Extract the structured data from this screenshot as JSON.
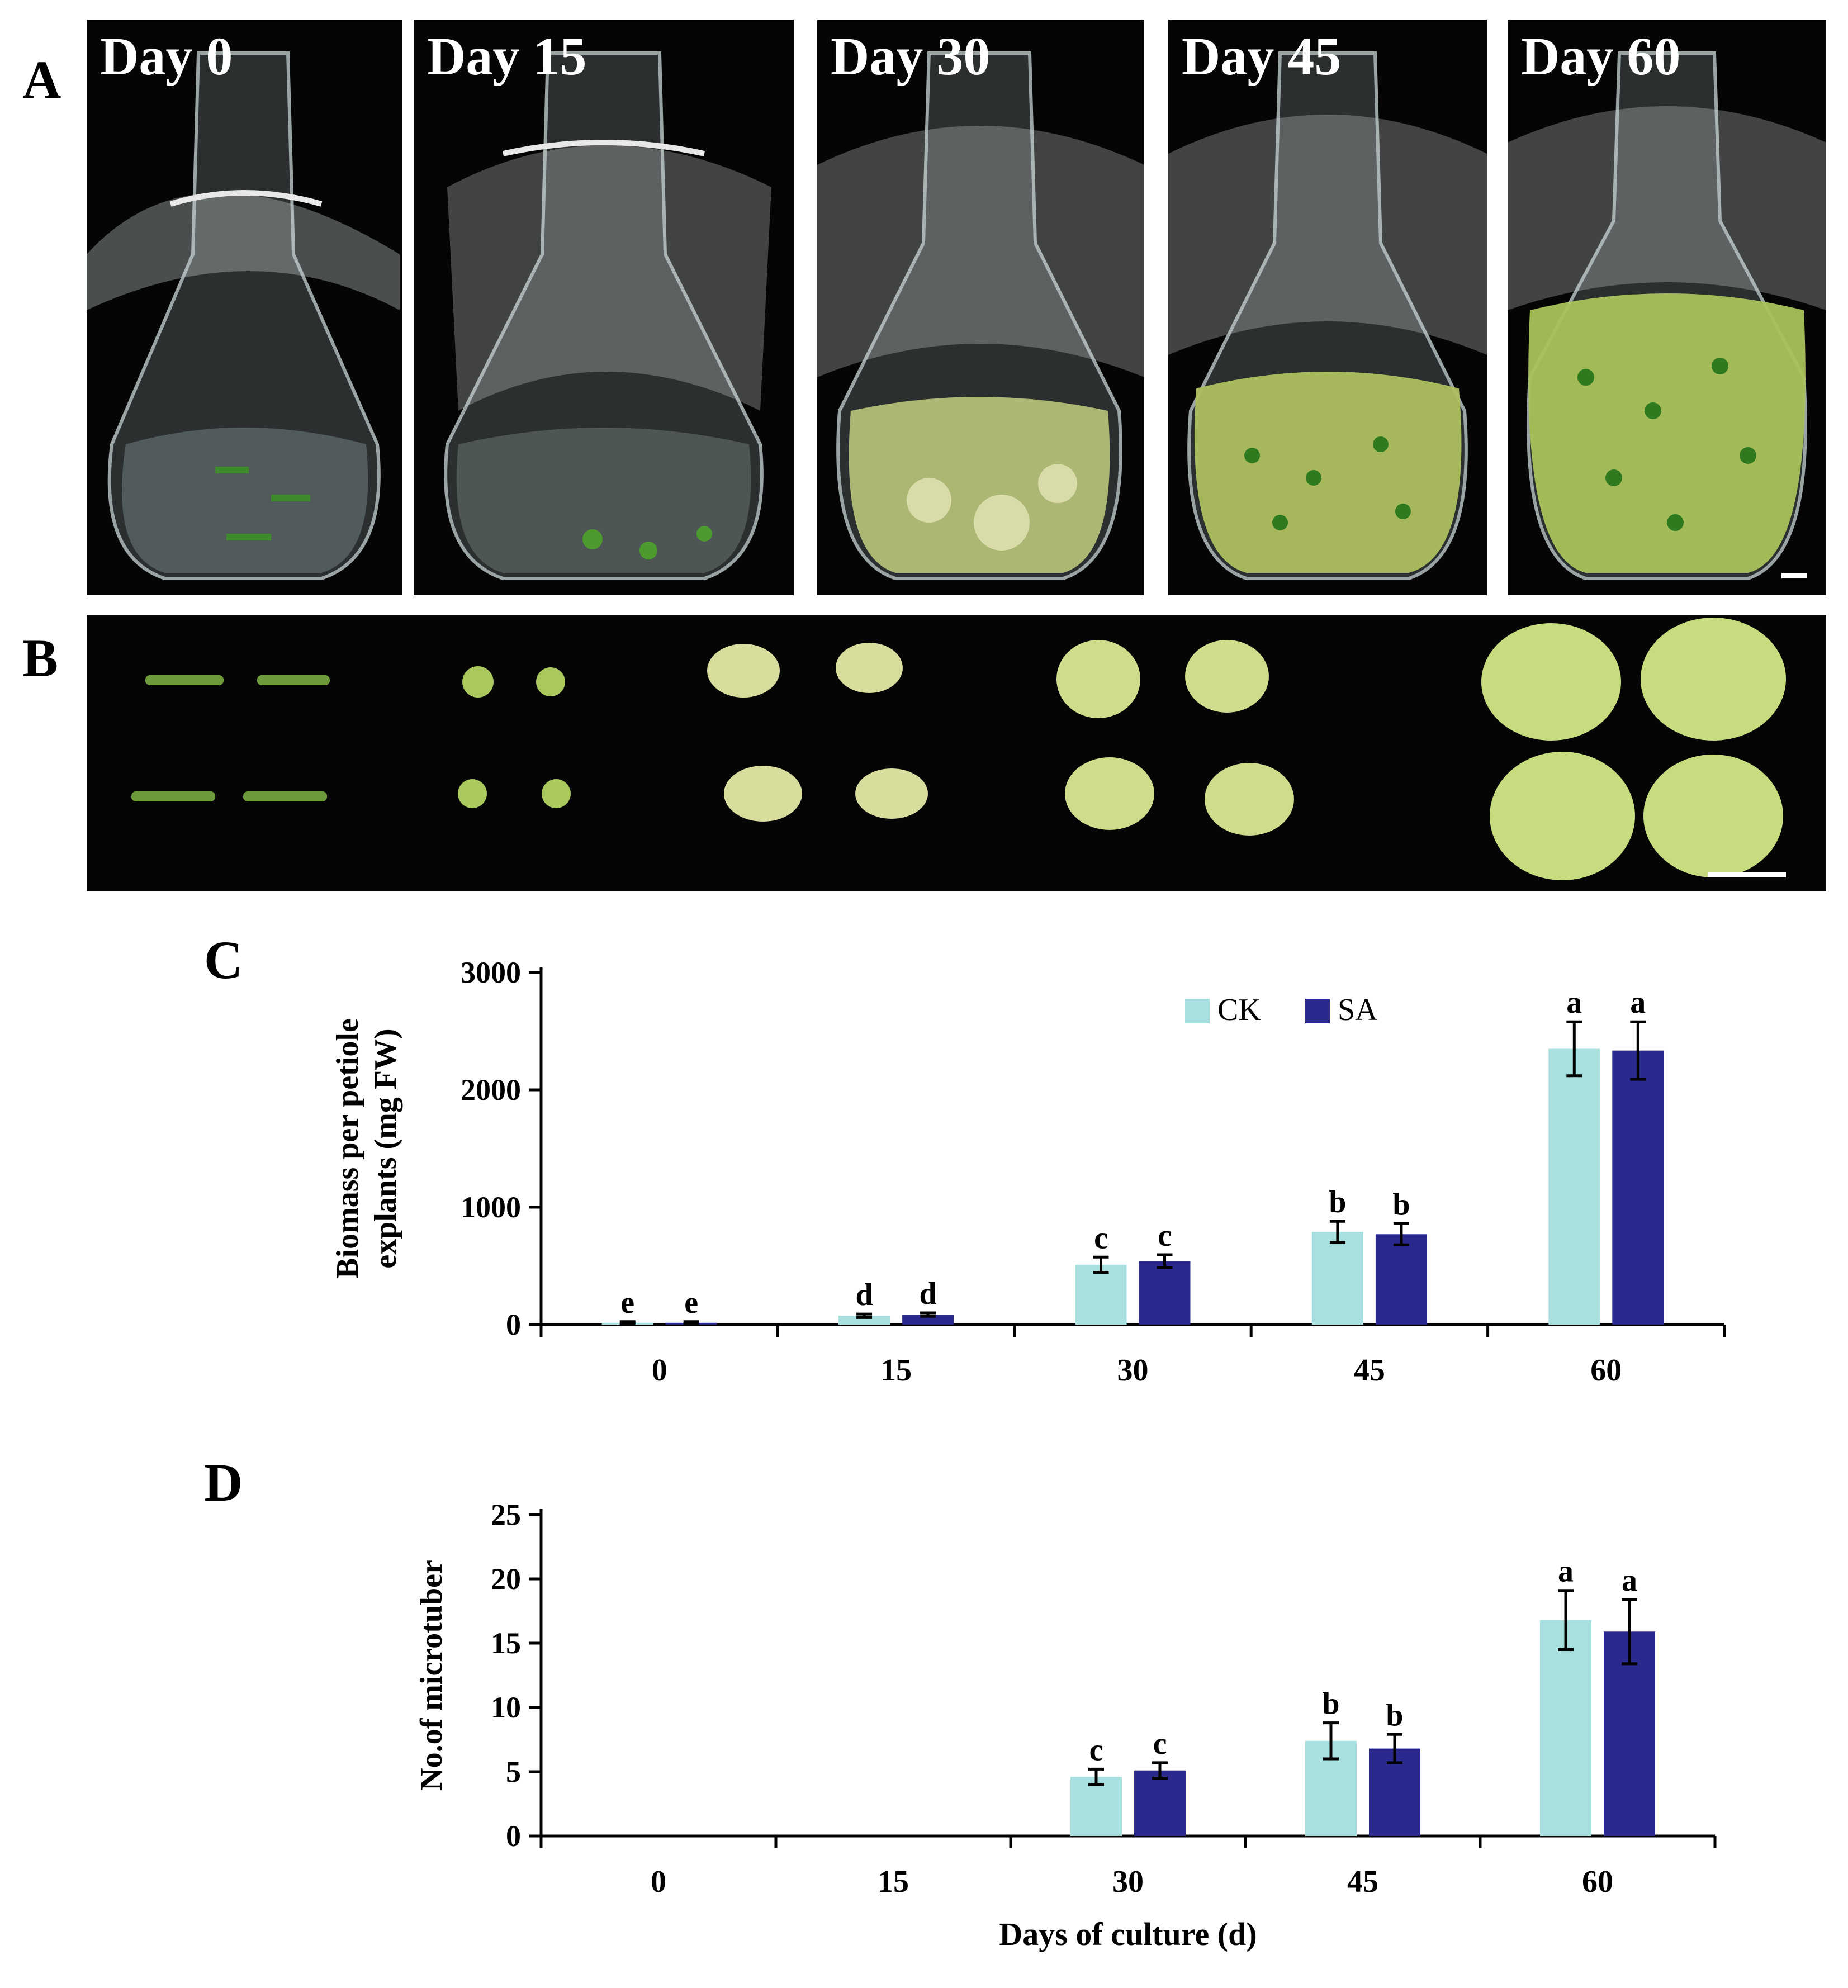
{
  "panels": {
    "A": "A",
    "B": "B",
    "C": "C",
    "D": "D"
  },
  "photos": {
    "flask_days": [
      "Day 0",
      "Day 15",
      "Day 30",
      "Day 45",
      "Day 60"
    ]
  },
  "colors": {
    "CK": "#a8e0df",
    "SA": "#2a2a8e",
    "photo_bg": "#050505"
  },
  "chart_data": [
    {
      "type": "bar",
      "panel": "C",
      "categories": [
        "0",
        "15",
        "30",
        "45",
        "60"
      ],
      "series": [
        {
          "name": "CK",
          "values": [
            15,
            75,
            510,
            790,
            2350
          ],
          "errors": [
            10,
            15,
            65,
            90,
            230
          ],
          "letters": [
            "e",
            "d",
            "c",
            "b",
            "a"
          ]
        },
        {
          "name": "SA",
          "values": [
            15,
            85,
            540,
            770,
            2335
          ],
          "errors": [
            10,
            15,
            55,
            90,
            245
          ],
          "letters": [
            "e",
            "d",
            "c",
            "b",
            "a"
          ]
        }
      ],
      "title": "",
      "xlabel": "",
      "ylabel_lines": [
        "Biomass per petiole",
        "explants (mg FW)"
      ],
      "yticks": [
        "0",
        "1000",
        "2000",
        "3000"
      ],
      "ylim": [
        0,
        3000
      ],
      "legend": "top-right",
      "grid": false
    },
    {
      "type": "bar",
      "panel": "D",
      "categories": [
        "0",
        "15",
        "30",
        "45",
        "60"
      ],
      "series": [
        {
          "name": "CK",
          "values": [
            0,
            0,
            4.6,
            7.4,
            16.8
          ],
          "errors": [
            0,
            0,
            0.6,
            1.4,
            2.3
          ],
          "letters": [
            "",
            "",
            "c",
            "b",
            "a"
          ]
        },
        {
          "name": "SA",
          "values": [
            0,
            0,
            5.1,
            6.8,
            15.9
          ],
          "errors": [
            0,
            0,
            0.6,
            1.1,
            2.5
          ],
          "letters": [
            "",
            "",
            "c",
            "b",
            "a"
          ]
        }
      ],
      "title": "",
      "xlabel": "Days of culture (d)",
      "ylabel_lines": [
        "No.of microtuber"
      ],
      "yticks": [
        "0",
        "5",
        "10",
        "15",
        "20",
        "25"
      ],
      "ylim": [
        0,
        25
      ],
      "legend": "none",
      "grid": false
    }
  ]
}
